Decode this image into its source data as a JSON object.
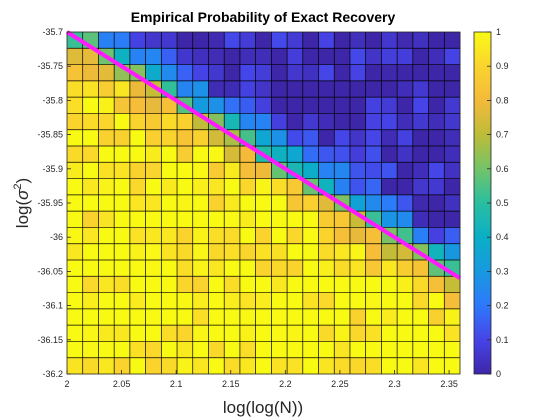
{
  "chart_data": {
    "type": "heatmap",
    "title": "Empirical Probability of Exact Recovery",
    "xlabel": "log(log(N))",
    "ylabel_base": "log(",
    "ylabel_sym": "σ",
    "ylabel_sup": "2",
    "ylabel_close": ")",
    "xlim": [
      2,
      2.36
    ],
    "ylim": [
      -36.2,
      -35.7
    ],
    "x_ticks": [
      "2",
      "2.05",
      "2.1",
      "2.15",
      "2.2",
      "2.25",
      "2.3",
      "2.35"
    ],
    "y_ticks": [
      "-35.7",
      "-35.75",
      "-35.8",
      "-35.85",
      "-35.9",
      "-35.95",
      "-36",
      "-36.05",
      "-36.1",
      "-36.15",
      "-36.2"
    ],
    "colorbar": {
      "range": [
        0,
        1
      ],
      "ticks": [
        "0",
        "0.1",
        "0.2",
        "0.3",
        "0.4",
        "0.5",
        "0.6",
        "0.7",
        "0.8",
        "0.9",
        "1"
      ],
      "colormap": "parula"
    },
    "grid": {
      "columns": 25,
      "rows": 21
    },
    "value_model": {
      "description": "probability ≈ 1 below the boundary line, ≈ 0 in the upper-right corner",
      "transition_width_in_log_sigma2": 0.05
    },
    "boundary_line": {
      "color": "#ff1aff",
      "points": [
        [
          2,
          -35.7
        ],
        [
          2.36,
          -36.06
        ]
      ]
    }
  }
}
